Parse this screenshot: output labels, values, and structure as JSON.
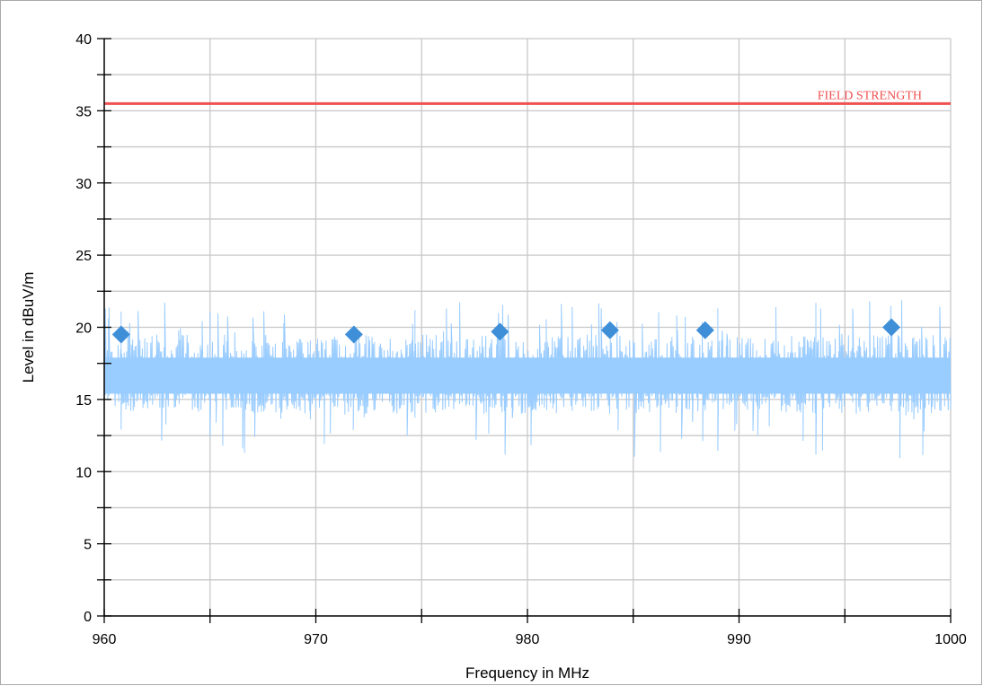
{
  "chart_data": {
    "type": "line",
    "title": "",
    "xlabel": "Frequency in MHz",
    "ylabel": "Level in dBuV/m",
    "xlim": [
      960,
      1000
    ],
    "ylim": [
      0,
      40
    ],
    "x_ticks": [
      960,
      970,
      980,
      990,
      1000
    ],
    "y_ticks": [
      0,
      5,
      10,
      15,
      20,
      25,
      30,
      35,
      40
    ],
    "grid": true,
    "series": [
      {
        "kind": "noise-trace",
        "color": "#99ccff",
        "baseline_level": 16.5,
        "typical_min": 14,
        "typical_max": 19.5,
        "peak_max": 21.9,
        "dip_min": 10.9
      }
    ],
    "markers": {
      "shape": "diamond",
      "color": "#3f8fd8",
      "points": [
        {
          "x": 960.8,
          "y": 19.5
        },
        {
          "x": 971.8,
          "y": 19.5
        },
        {
          "x": 978.7,
          "y": 19.7
        },
        {
          "x": 983.9,
          "y": 19.8
        },
        {
          "x": 988.4,
          "y": 19.8
        },
        {
          "x": 997.2,
          "y": 20.0
        }
      ]
    },
    "limit_line": {
      "label": "FIELD STRENGTH",
      "value": 35.5,
      "color": "#f05050"
    }
  }
}
